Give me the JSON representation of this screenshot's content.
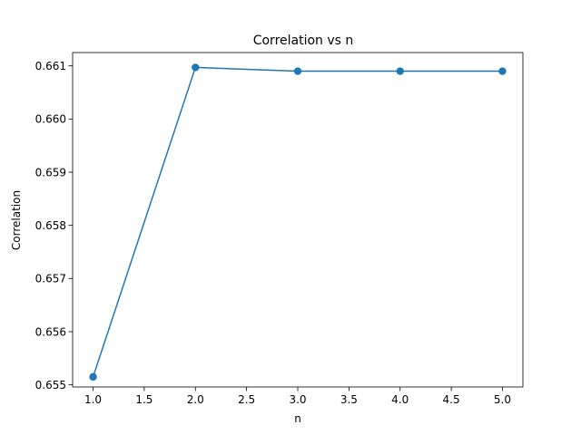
{
  "chart_data": {
    "type": "line",
    "title": "Correlation vs n",
    "xlabel": "n",
    "ylabel": "Correlation",
    "x": [
      1.0,
      2.0,
      3.0,
      4.0,
      5.0
    ],
    "series": [
      {
        "values": [
          0.65515,
          0.66097,
          0.6609,
          0.6609,
          0.6609
        ],
        "color": "#1f77b4",
        "marker": "circle"
      }
    ],
    "xlim": [
      0.8,
      5.2
    ],
    "ylim": [
      0.65496,
      0.66125
    ],
    "xticks": [
      1.0,
      1.5,
      2.0,
      2.5,
      3.0,
      3.5,
      4.0,
      4.5,
      5.0
    ],
    "xtick_labels": [
      "1.0",
      "1.5",
      "2.0",
      "2.5",
      "3.0",
      "3.5",
      "4.0",
      "4.5",
      "5.0"
    ],
    "yticks": [
      0.655,
      0.656,
      0.657,
      0.658,
      0.659,
      0.66,
      0.661
    ],
    "ytick_labels": [
      "0.655",
      "0.656",
      "0.657",
      "0.658",
      "0.659",
      "0.660",
      "0.661"
    ],
    "grid": false,
    "legend": "none"
  }
}
